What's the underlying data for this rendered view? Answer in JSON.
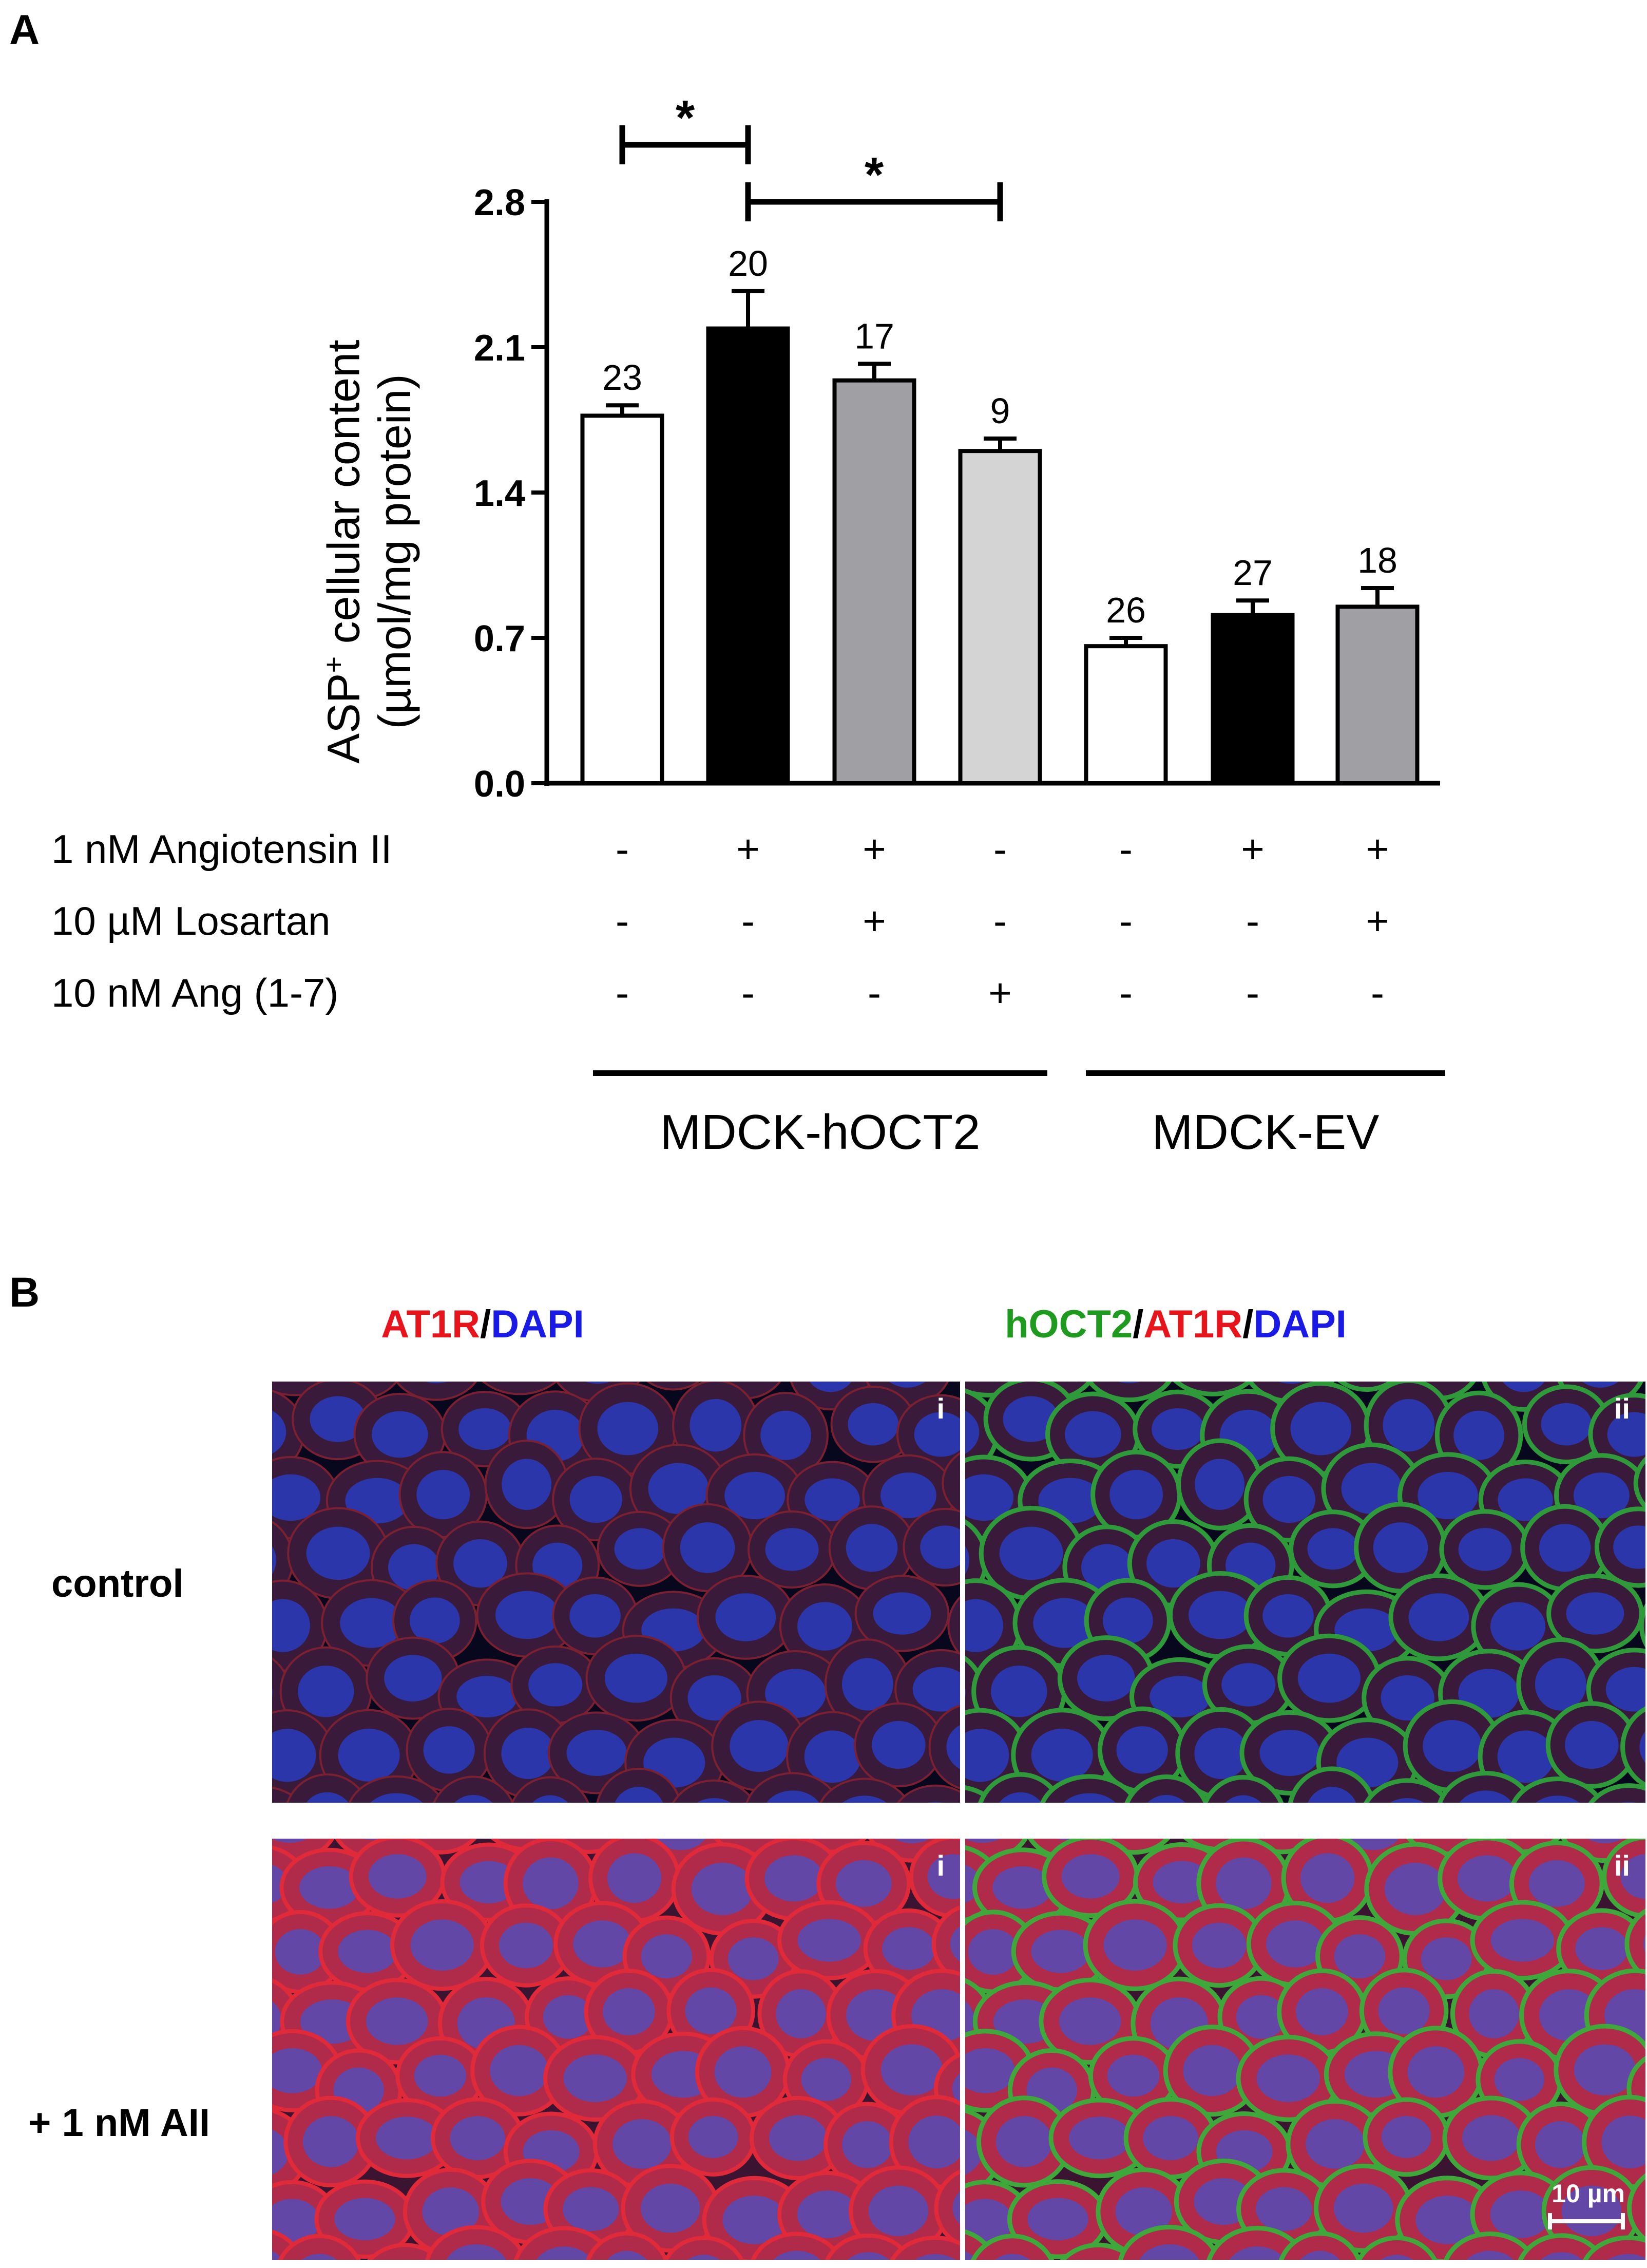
{
  "panel_a_letter": "A",
  "panel_b_letter": "B",
  "chart_data": {
    "type": "bar",
    "ylabel_line1": "ASP",
    "ylabel_sup": "+",
    "ylabel_line1_rest": " cellular content",
    "ylabel_line2": "(µmol/mg protein)",
    "ylim": [
      0,
      2.8
    ],
    "yticks": [
      "0.0",
      "0.7",
      "1.4",
      "2.1",
      "2.8"
    ],
    "bars": [
      {
        "value": 1.77,
        "error": 0.05,
        "n": "23",
        "color": "#ffffff"
      },
      {
        "value": 2.19,
        "error": 0.18,
        "n": "20",
        "color": "#000000"
      },
      {
        "value": 1.94,
        "error": 0.08,
        "n": "17",
        "color": "#a0a0a4"
      },
      {
        "value": 1.6,
        "error": 0.06,
        "n": "9",
        "color": "#d4d4d4"
      },
      {
        "value": 0.66,
        "error": 0.04,
        "n": "26",
        "color": "#ffffff"
      },
      {
        "value": 0.81,
        "error": 0.07,
        "n": "27",
        "color": "#000000"
      },
      {
        "value": 0.85,
        "error": 0.09,
        "n": "18",
        "color": "#a0a0a4"
      }
    ],
    "significance": [
      {
        "from": 0,
        "to": 1,
        "label": "*"
      },
      {
        "from": 1,
        "to": 3,
        "label": "*"
      }
    ],
    "conditions": [
      {
        "label": "1 nM Angiotensin II",
        "signs": [
          "-",
          "+",
          "+",
          "-",
          "-",
          "+",
          "+"
        ]
      },
      {
        "label": "10 µM Losartan",
        "signs": [
          "-",
          "-",
          "+",
          "-",
          "-",
          "-",
          "+"
        ]
      },
      {
        "label": "10 nM Ang (1-7)",
        "signs": [
          "-",
          "-",
          "-",
          "+",
          "-",
          "-",
          "-"
        ]
      }
    ],
    "groups": [
      "MDCK-hOCT2",
      "MDCK-EV"
    ]
  },
  "panel_b": {
    "col1_title": {
      "at1r": "AT1R",
      "slash": "/",
      "dapi": "DAPI"
    },
    "col2_title": {
      "hoct2": "hOCT2",
      "slash1": "/",
      "at1r": "AT1R",
      "slash2": "/",
      "dapi": "DAPI"
    },
    "row_labels": [
      "control",
      "+ 1 nM AII"
    ],
    "panel_ids": [
      "i",
      "ii",
      "i",
      "ii"
    ],
    "scale_bar": "10 µm"
  },
  "colors": {
    "red_label": "#e8141c",
    "blue_label": "#1a1ae6",
    "green_label": "#1e9a1e"
  }
}
